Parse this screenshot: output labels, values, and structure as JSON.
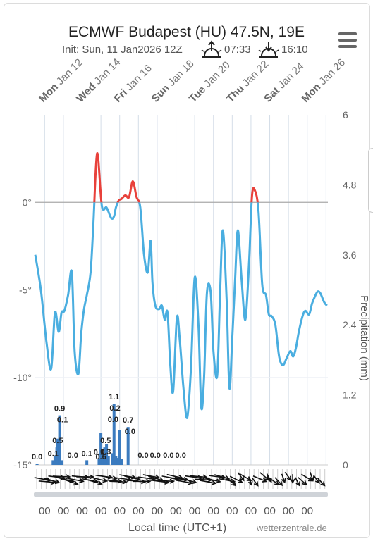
{
  "header": {
    "title": "ECMWF Budapest (HU) 47.5N, 19E",
    "init": "Init: Sun, 11 Jan2026 12Z",
    "sunrise": "07:33",
    "sunset": "16:10"
  },
  "footer": {
    "xlabel": "Local time (UTC+1)",
    "credit": "wetterzentrale.de",
    "hour_label": "00"
  },
  "colors": {
    "temperature": "#4aaee0",
    "above_zero": "#e8413b",
    "precipitation": "#3b7bbf",
    "grid": "#d4dde8"
  },
  "chart_data": {
    "type": "line",
    "x_start": "Jan 11 12:00",
    "top_axis": [
      {
        "day": "Mon",
        "date": "Jan 12"
      },
      {
        "day": "Wed",
        "date": "Jan 14"
      },
      {
        "day": "Fri",
        "date": "Jan 16"
      },
      {
        "day": "Sun",
        "date": "Jan 18"
      },
      {
        "day": "Tue",
        "date": "Jan 20"
      },
      {
        "day": "Thu",
        "date": "Jan 22"
      },
      {
        "day": "Sat",
        "date": "Jan 24"
      },
      {
        "day": "Mon",
        "date": "Jan 26"
      }
    ],
    "left_axis": {
      "ticks": [
        "0°",
        "-5°",
        "-10°",
        "-15°"
      ],
      "ylim": [
        -15,
        5
      ]
    },
    "right_axis": {
      "label": "Precipitation (mm)",
      "ticks": [
        "6",
        "4.8",
        "3.6",
        "2.4",
        "1.2",
        "0"
      ],
      "ylim": [
        0,
        6
      ]
    },
    "series": [
      {
        "type": "line",
        "x": [
          0,
          0.3,
          0.6,
          0.85,
          1.05,
          1.25,
          1.4,
          1.55,
          1.75,
          1.95,
          2.1,
          2.3,
          2.45,
          2.6,
          2.75,
          2.95,
          3.1,
          3.3,
          3.55,
          3.8,
          4.05,
          4.2,
          4.3,
          4.45,
          4.6,
          4.8,
          5.0,
          5.2,
          5.4,
          5.6,
          5.8,
          6.0,
          6.15,
          6.25,
          6.4,
          6.6,
          6.75,
          6.9,
          7.05,
          7.2,
          7.35,
          7.55,
          7.7,
          7.9,
          8.1,
          8.3,
          8.5,
          8.7,
          8.85,
          9.0,
          9.15,
          9.35,
          9.5,
          9.7,
          9.85,
          10.0,
          10.2,
          10.35,
          10.5,
          10.65,
          10.8,
          11.0,
          11.2,
          11.4,
          11.55,
          11.7,
          11.9,
          12.1,
          12.3,
          12.45,
          12.6,
          12.8,
          13.0,
          13.2,
          13.4,
          13.6,
          13.75,
          13.9,
          14.05,
          14.25,
          14.4,
          14.6,
          14.75,
          14.9,
          15.05,
          15.2,
          15.4,
          15.55
        ],
        "values": [
          -3,
          -5,
          -8,
          -9.5,
          -6.3,
          -7.4,
          -6.3,
          -6.2,
          -5.3,
          -4,
          -8.5,
          -9.8,
          -7.5,
          -6.1,
          -5.3,
          -4,
          -1.2,
          2.8,
          -0.2,
          -0.3,
          -0.9,
          -0.8,
          -0.3,
          0.1,
          0.2,
          0.4,
          0.3,
          1.2,
          0.3,
          -0.3,
          -3,
          -4,
          -2.2,
          -4.6,
          -5.9,
          -6.1,
          -5.9,
          -6.7,
          -6.3,
          -9.3,
          -10.8,
          -6.6,
          -7.8,
          -10.6,
          -12.3,
          -9.5,
          -4.3,
          -7,
          -11.7,
          -10,
          -5.2,
          -5.1,
          -8.5,
          -9.9,
          -5.3,
          -1.6,
          -5.5,
          -10.6,
          -7.8,
          -4.5,
          -1.6,
          -4.4,
          -6.7,
          -3.4,
          0.3,
          0.7,
          -0.5,
          -4.7,
          -5.3,
          -6.4,
          -6.5,
          -7,
          -8.8,
          -9.3,
          -8.9,
          -8.5,
          -8.8,
          -8.3,
          -7.4,
          -6.5,
          -6.2,
          -6.4,
          -5.8,
          -5.4,
          -5.1,
          -5.2,
          -5.7,
          -5.9
        ]
      }
    ],
    "precip_labels": [
      {
        "x": 0.1,
        "text": "0.0"
      },
      {
        "x": 0.95,
        "text": "0.1"
      },
      {
        "x": 1.2,
        "text": "0.5"
      },
      {
        "x": 1.3,
        "text": "0.9"
      },
      {
        "x": 1.45,
        "text": "0.1"
      },
      {
        "x": 2.0,
        "text": "0.0"
      },
      {
        "x": 2.75,
        "text": "0.1"
      },
      {
        "x": 3.4,
        "text": "0.1"
      },
      {
        "x": 3.5,
        "text": "0.6"
      },
      {
        "x": 3.75,
        "text": "0.5"
      },
      {
        "x": 3.75,
        "text": "0.3"
      },
      {
        "x": 4.2,
        "text": "1.1"
      },
      {
        "x": 4.25,
        "text": "0.2"
      },
      {
        "x": 4.15,
        "text": "0.0"
      },
      {
        "x": 4.95,
        "text": "0.7"
      },
      {
        "x": 5.05,
        "text": "0.0"
      },
      {
        "x": 5.75,
        "text": "0.0"
      },
      {
        "x": 6.4,
        "text": "0.0"
      },
      {
        "x": 7.1,
        "text": "0.0"
      },
      {
        "x": 7.75,
        "text": "0.0"
      }
    ],
    "precip_bars": [
      {
        "x": 0.1,
        "v": 0.02
      },
      {
        "x": 0.95,
        "v": 0.08
      },
      {
        "x": 1.05,
        "v": 0.15
      },
      {
        "x": 1.15,
        "v": 0.3
      },
      {
        "x": 1.2,
        "v": 0.45
      },
      {
        "x": 1.3,
        "v": 0.85
      },
      {
        "x": 1.4,
        "v": 0.08
      },
      {
        "x": 2.75,
        "v": 0.08
      },
      {
        "x": 3.4,
        "v": 0.1
      },
      {
        "x": 3.5,
        "v": 0.55
      },
      {
        "x": 3.6,
        "v": 0.2
      },
      {
        "x": 3.7,
        "v": 0.3
      },
      {
        "x": 3.8,
        "v": 0.35
      },
      {
        "x": 3.9,
        "v": 0.15
      },
      {
        "x": 4.1,
        "v": 0.2
      },
      {
        "x": 4.2,
        "v": 1.05
      },
      {
        "x": 4.3,
        "v": 0.15
      },
      {
        "x": 4.4,
        "v": 0.12
      },
      {
        "x": 4.5,
        "v": 0.6
      },
      {
        "x": 4.6,
        "v": 0.1
      },
      {
        "x": 4.95,
        "v": 0.65
      }
    ]
  }
}
